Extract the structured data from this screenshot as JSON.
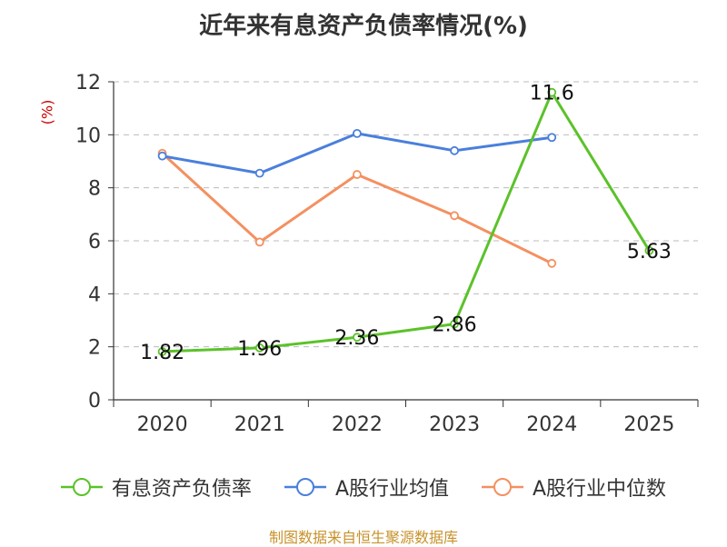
{
  "title": "近年来有息资产负债率情况(%)",
  "unit_label": "(%)",
  "source": "制图数据来自恒生聚源数据库",
  "chart_data": {
    "type": "line",
    "title": "近年来有息资产负债率情况(%)",
    "ylabel": "(%)",
    "xlabel": "",
    "categories": [
      "2020",
      "2021",
      "2022",
      "2023",
      "2024",
      "2025"
    ],
    "ylim": [
      0,
      12
    ],
    "yticks": [
      0,
      2,
      4,
      6,
      8,
      10,
      12
    ],
    "grid": true,
    "legend_position": "bottom",
    "series": [
      {
        "name": "有息资产负债率",
        "color": "#5bc22a",
        "values": [
          1.82,
          1.96,
          2.36,
          2.86,
          11.6,
          5.63
        ],
        "labels": [
          "1.82",
          "1.96",
          "2.36",
          "2.86",
          "11.6",
          "5.63"
        ]
      },
      {
        "name": "A股行业均值",
        "color": "#4a7fdc",
        "values": [
          9.2,
          8.55,
          10.05,
          9.4,
          9.9,
          null
        ]
      },
      {
        "name": "A股行业中位数",
        "color": "#f49060",
        "values": [
          9.3,
          5.95,
          8.5,
          6.95,
          5.15,
          null
        ]
      }
    ]
  }
}
